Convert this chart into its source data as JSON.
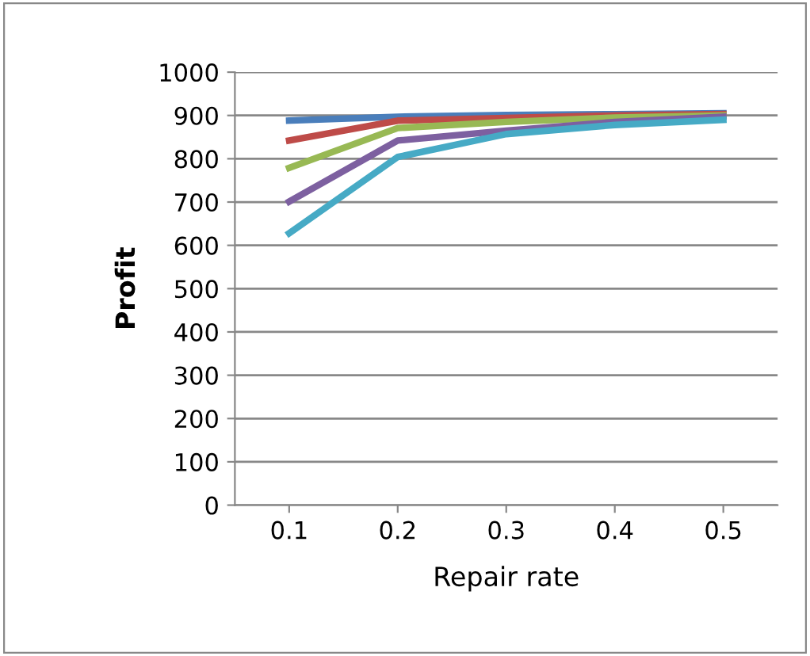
{
  "chart_data": {
    "type": "line",
    "xlabel": "Repair rate",
    "ylabel": "Profit",
    "categories": [
      "0.1",
      "0.2",
      "0.3",
      "0.4",
      "0.5"
    ],
    "series": [
      {
        "color": "#4a7ebb",
        "values": [
          888,
          897,
          901,
          903,
          905
        ]
      },
      {
        "color": "#be4b48",
        "values": [
          842,
          888,
          894,
          900,
          903
        ]
      },
      {
        "color": "#98b954",
        "values": [
          779,
          871,
          885,
          895,
          900
        ]
      },
      {
        "color": "#7d60a0",
        "values": [
          701,
          842,
          865,
          885,
          897
        ]
      },
      {
        "color": "#46aac5",
        "values": [
          628,
          804,
          857,
          878,
          890
        ]
      }
    ],
    "ylim": [
      0,
      1000
    ],
    "yticks": [
      0,
      100,
      200,
      300,
      400,
      500,
      600,
      700,
      800,
      900,
      1000
    ],
    "grid": "y",
    "marker": "none",
    "line_style": "solid"
  }
}
